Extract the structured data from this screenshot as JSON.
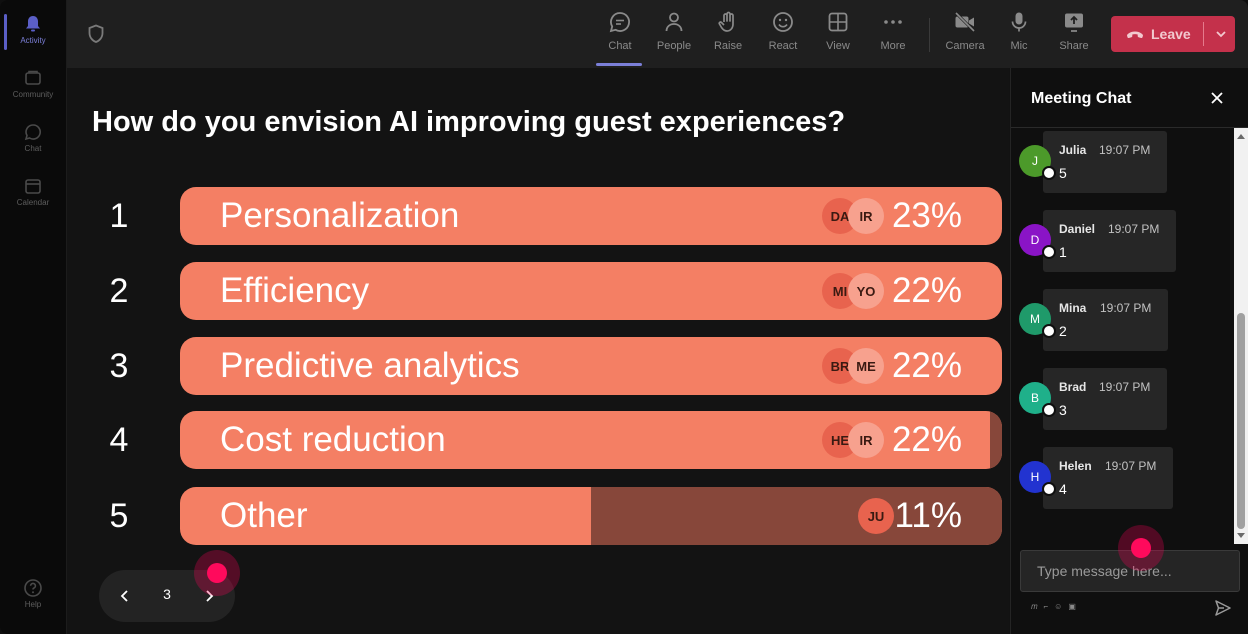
{
  "rail": {
    "items": [
      {
        "label": "Activity",
        "icon": "bell-icon",
        "active": true
      },
      {
        "label": "Community",
        "icon": "community-icon"
      },
      {
        "label": "Chat",
        "icon": "chat-icon"
      },
      {
        "label": "Calendar",
        "icon": "calendar-icon"
      }
    ],
    "help": {
      "label": "Help",
      "icon": "help-icon"
    }
  },
  "toolbar": {
    "buttons": [
      {
        "label": "Chat",
        "icon": "chat-icon",
        "active": true
      },
      {
        "label": "People",
        "icon": "people-icon"
      },
      {
        "label": "Raise",
        "icon": "raise-hand-icon"
      },
      {
        "label": "React",
        "icon": "react-icon"
      },
      {
        "label": "View",
        "icon": "view-grid-icon"
      },
      {
        "label": "More",
        "icon": "more-icon"
      },
      {
        "label": "Camera",
        "icon": "camera-off-icon"
      },
      {
        "label": "Mic",
        "icon": "mic-icon"
      },
      {
        "label": "Share",
        "icon": "share-icon"
      }
    ],
    "leave_label": "Leave",
    "leave_color": "#c4314b"
  },
  "poll": {
    "question": "How do you envision AI improving guest experiences?",
    "bar_color": "#f47f64",
    "remainder_color": "#87473a",
    "options": [
      {
        "num": "1",
        "label": "Personalization",
        "percent_label": "23%",
        "fill": 1.0,
        "avatars": [
          "DA",
          "IR"
        ]
      },
      {
        "num": "2",
        "label": "Efficiency",
        "percent_label": "22%",
        "fill": 1.0,
        "avatars": [
          "MI",
          "YO"
        ]
      },
      {
        "num": "3",
        "label": "Predictive analytics",
        "percent_label": "22%",
        "fill": 1.0,
        "avatars": [
          "BR",
          "ME"
        ]
      },
      {
        "num": "4",
        "label": "Cost reduction",
        "percent_label": "22%",
        "fill": 0.985,
        "avatars": [
          "HE",
          "IR"
        ]
      },
      {
        "num": "5",
        "label": "Other",
        "percent_label": "11%",
        "fill": 0.5,
        "avatars": [
          "JU"
        ]
      }
    ]
  },
  "pager": {
    "current": "3"
  },
  "chat": {
    "title": "Meeting Chat",
    "messages": [
      {
        "initial": "J",
        "name": "Julia",
        "time": "19:07 PM",
        "text": "5",
        "avatar_color": "#4c9a2a"
      },
      {
        "initial": "D",
        "name": "Daniel",
        "time": "19:07 PM",
        "text": "1",
        "avatar_color": "#8a14c6"
      },
      {
        "initial": "M",
        "name": "Mina",
        "time": "19:07 PM",
        "text": "2",
        "avatar_color": "#1f9a6a"
      },
      {
        "initial": "B",
        "name": "Brad",
        "time": "19:07 PM",
        "text": "3",
        "avatar_color": "#1fb08a"
      },
      {
        "initial": "H",
        "name": "Helen",
        "time": "19:07 PM",
        "text": "4",
        "avatar_color": "#2233d0"
      }
    ],
    "compose_placeholder": "Type message here..."
  }
}
